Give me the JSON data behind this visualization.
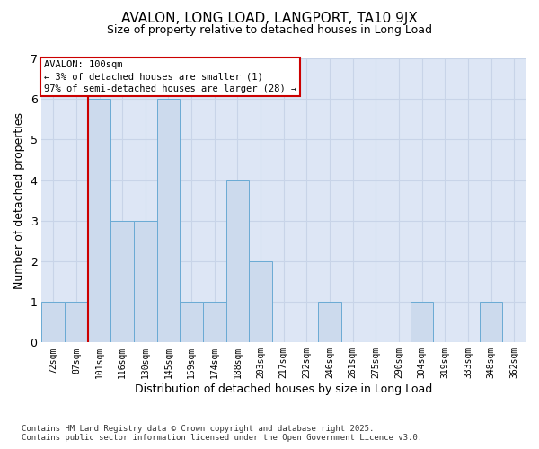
{
  "title": "AVALON, LONG LOAD, LANGPORT, TA10 9JX",
  "subtitle": "Size of property relative to detached houses in Long Load",
  "xlabel": "Distribution of detached houses by size in Long Load",
  "ylabel": "Number of detached properties",
  "footnote": "Contains HM Land Registry data © Crown copyright and database right 2025.\nContains public sector information licensed under the Open Government Licence v3.0.",
  "categories": [
    "72sqm",
    "87sqm",
    "101sqm",
    "116sqm",
    "130sqm",
    "145sqm",
    "159sqm",
    "174sqm",
    "188sqm",
    "203sqm",
    "217sqm",
    "232sqm",
    "246sqm",
    "261sqm",
    "275sqm",
    "290sqm",
    "304sqm",
    "319sqm",
    "333sqm",
    "348sqm",
    "362sqm"
  ],
  "values": [
    1,
    1,
    6,
    3,
    3,
    6,
    1,
    1,
    4,
    2,
    0,
    0,
    1,
    0,
    0,
    0,
    1,
    0,
    0,
    1,
    0
  ],
  "bar_color": "#ccdaed",
  "bar_edge_color": "#6aaad4",
  "highlight_bar_index": 2,
  "annotation_text": "AVALON: 100sqm\n← 3% of detached houses are smaller (1)\n97% of semi-detached houses are larger (28) →",
  "annotation_box_color": "#ffffff",
  "annotation_border_color": "#cc0000",
  "red_line_color": "#cc0000",
  "ylim": [
    0,
    7
  ],
  "yticks": [
    0,
    1,
    2,
    3,
    4,
    5,
    6,
    7
  ],
  "grid_color": "#c8d4e8",
  "background_color": "#dde6f5"
}
